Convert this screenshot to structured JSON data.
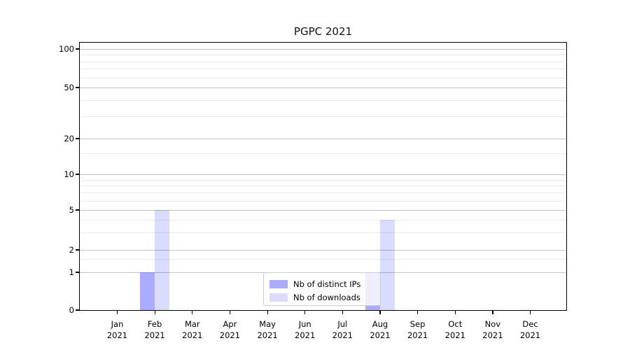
{
  "chart_data": {
    "type": "bar",
    "title": "PGPC 2021",
    "year": "2021",
    "categories": [
      "Jan",
      "Feb",
      "Mar",
      "Apr",
      "May",
      "Jun",
      "Jul",
      "Aug",
      "Sep",
      "Oct",
      "Nov",
      "Dec"
    ],
    "series": [
      {
        "name": "Nb of distinct IPs",
        "color": "rgba(0,0,255,0.33)",
        "solid_color": "#aaacfa",
        "values": [
          0,
          1,
          0,
          0,
          0,
          0,
          0,
          1,
          0,
          0,
          0,
          0
        ]
      },
      {
        "name": "Nb of downloads",
        "color": "rgba(0,0,255,0.14)",
        "solid_color": "#dcdcfb",
        "values": [
          0,
          5,
          0,
          0,
          0,
          0,
          0,
          4,
          0,
          0,
          0,
          0
        ]
      }
    ],
    "xlabel": "",
    "ylabel": "",
    "y_axis": {
      "scale": "asinh (linear 0-1, log-like above)",
      "ticks": [
        0,
        1,
        2,
        5,
        10,
        20,
        50,
        100
      ],
      "minor_gridlines": [
        1.5,
        3,
        4,
        6,
        7,
        8,
        9,
        15,
        30,
        40,
        60,
        70,
        80,
        90
      ],
      "range": [
        0,
        100
      ]
    },
    "grid": "on",
    "legend": {
      "position": "bottom-center",
      "entries": [
        "Nb of distinct IPs",
        "Nb of downloads"
      ]
    }
  },
  "colors": {
    "grid_major": "#c3c3c3",
    "grid_minor": "#ebebeb",
    "spine": "#000000",
    "legend_border": "#cccccc",
    "text": "#000000"
  }
}
